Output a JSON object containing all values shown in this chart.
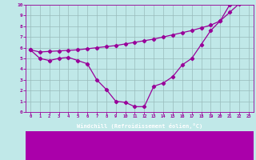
{
  "xlabel": "Windchill (Refroidissement éolien,°C)",
  "bg_color": "#c0e8e8",
  "line_color": "#990099",
  "grid_color": "#99bbbb",
  "xlabel_bg": "#9900aa",
  "xlim": [
    -0.5,
    23.5
  ],
  "ylim": [
    0,
    10
  ],
  "xticks": [
    0,
    1,
    2,
    3,
    4,
    5,
    6,
    7,
    8,
    9,
    10,
    11,
    12,
    13,
    14,
    15,
    16,
    17,
    18,
    19,
    20,
    21,
    22,
    23
  ],
  "yticks": [
    0,
    1,
    2,
    3,
    4,
    5,
    6,
    7,
    8,
    9,
    10
  ],
  "line1_x": [
    0,
    1,
    2,
    3,
    4,
    5,
    6,
    7,
    8,
    9,
    10,
    11,
    12,
    13,
    14,
    15,
    16,
    17,
    18,
    19,
    20,
    21,
    22,
    23
  ],
  "line1_y": [
    5.8,
    5.0,
    4.8,
    5.0,
    5.1,
    4.8,
    4.5,
    3.0,
    2.1,
    1.0,
    0.9,
    0.5,
    0.5,
    2.4,
    2.7,
    3.3,
    4.4,
    5.0,
    6.3,
    7.6,
    8.5,
    10.0,
    10.2,
    10.5
  ],
  "line2_x": [
    0,
    1,
    2,
    3,
    4,
    5,
    6,
    7,
    8,
    9,
    10,
    11,
    12,
    13,
    14,
    15,
    16,
    17,
    18,
    19,
    20,
    21,
    22,
    23
  ],
  "line2_y": [
    5.8,
    5.6,
    5.65,
    5.7,
    5.75,
    5.8,
    5.9,
    6.0,
    6.1,
    6.2,
    6.35,
    6.5,
    6.65,
    6.8,
    7.0,
    7.2,
    7.4,
    7.6,
    7.85,
    8.1,
    8.5,
    9.3,
    10.1,
    10.5
  ]
}
